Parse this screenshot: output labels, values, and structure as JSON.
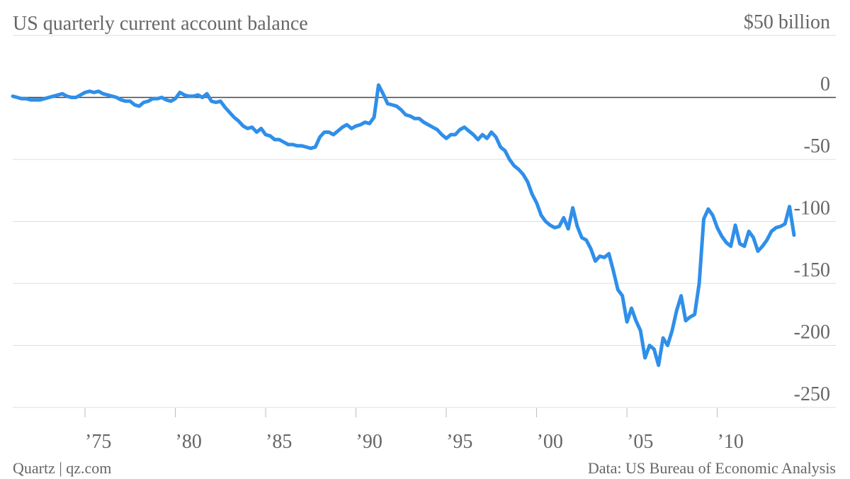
{
  "chart_data": {
    "type": "line",
    "title": "US quarterly current account balance",
    "footer": "Quartz | qz.com",
    "source": "Data: US Bureau of Economic Analysis",
    "x": [
      1971,
      1971.25,
      1971.5,
      1971.75,
      1972,
      1972.25,
      1972.5,
      1972.75,
      1973,
      1973.25,
      1973.5,
      1973.75,
      1974,
      1974.25,
      1974.5,
      1974.75,
      1975,
      1975.25,
      1975.5,
      1975.75,
      1976,
      1976.25,
      1976.5,
      1976.75,
      1977,
      1977.25,
      1977.5,
      1977.75,
      1978,
      1978.25,
      1978.5,
      1978.75,
      1979,
      1979.25,
      1979.5,
      1979.75,
      1980,
      1980.25,
      1980.5,
      1980.75,
      1981,
      1981.25,
      1981.5,
      1981.75,
      1982,
      1982.25,
      1982.5,
      1982.75,
      1983,
      1983.25,
      1983.5,
      1983.75,
      1984,
      1984.25,
      1984.5,
      1984.75,
      1985,
      1985.25,
      1985.5,
      1985.75,
      1986,
      1986.25,
      1986.5,
      1986.75,
      1987,
      1987.25,
      1987.5,
      1987.75,
      1988,
      1988.25,
      1988.5,
      1988.75,
      1989,
      1989.25,
      1989.5,
      1989.75,
      1990,
      1990.25,
      1990.5,
      1990.75,
      1991,
      1991.25,
      1991.5,
      1991.75,
      1992,
      1992.25,
      1992.5,
      1992.75,
      1993,
      1993.25,
      1993.5,
      1993.75,
      1994,
      1994.25,
      1994.5,
      1994.75,
      1995,
      1995.25,
      1995.5,
      1995.75,
      1996,
      1996.25,
      1996.5,
      1996.75,
      1997,
      1997.25,
      1997.5,
      1997.75,
      1998,
      1998.25,
      1998.5,
      1998.75,
      1999,
      1999.25,
      1999.5,
      1999.75,
      2000,
      2000.25,
      2000.5,
      2000.75,
      2001,
      2001.25,
      2001.5,
      2001.75,
      2002,
      2002.25,
      2002.5,
      2002.75,
      2003,
      2003.25,
      2003.5,
      2003.75,
      2004,
      2004.25,
      2004.5,
      2004.75,
      2005,
      2005.25,
      2005.5,
      2005.75,
      2006,
      2006.25,
      2006.5,
      2006.75,
      2007,
      2007.25,
      2007.5,
      2007.75,
      2008,
      2008.25,
      2008.5,
      2008.75,
      2009,
      2009.25,
      2009.5,
      2009.75,
      2010,
      2010.25,
      2010.5,
      2010.75,
      2011,
      2011.25,
      2011.5,
      2011.75,
      2012,
      2012.25,
      2012.5,
      2012.75,
      2013,
      2013.25,
      2013.5,
      2013.75,
      2014,
      2014.25
    ],
    "series": [
      {
        "name": "Current account balance",
        "color": "#2f8fe9",
        "values": [
          1,
          0,
          -1,
          -1,
          -2,
          -2,
          -2,
          -1,
          0,
          1,
          2,
          3,
          1,
          0,
          0,
          2,
          4,
          5,
          4,
          5,
          3,
          2,
          1,
          0,
          -2,
          -3,
          -3,
          -6,
          -7,
          -4,
          -3,
          -1,
          -1,
          0,
          -2,
          -3,
          -1,
          4,
          2,
          1,
          1,
          2,
          0,
          3,
          -3,
          -4,
          -3,
          -8,
          -12,
          -16,
          -19,
          -23,
          -25,
          -24,
          -28,
          -25,
          -30,
          -31,
          -34,
          -34,
          -36,
          -38,
          -38,
          -39,
          -39,
          -40,
          -41,
          -40,
          -32,
          -28,
          -28,
          -30,
          -27,
          -24,
          -22,
          -25,
          -23,
          -22,
          -20,
          -21,
          -16,
          10,
          3,
          -5,
          -6,
          -7,
          -10,
          -14,
          -15,
          -17,
          -17,
          -20,
          -22,
          -24,
          -26,
          -30,
          -33,
          -30,
          -30,
          -26,
          -24,
          -27,
          -30,
          -34,
          -30,
          -33,
          -28,
          -32,
          -40,
          -43,
          -50,
          -55,
          -58,
          -62,
          -68,
          -78,
          -85,
          -95,
          -100,
          -103,
          -105,
          -104,
          -97,
          -106,
          -89,
          -104,
          -113,
          -115,
          -122,
          -132,
          -128,
          -129,
          -126,
          -140,
          -155,
          -160,
          -181,
          -170,
          -180,
          -188,
          -210,
          -200,
          -203,
          -216,
          -194,
          -200,
          -188,
          -172,
          -160,
          -180,
          -177,
          -175,
          -150,
          -98,
          -90,
          -95,
          -105,
          -112,
          -117,
          -120,
          -103,
          -118,
          -120,
          -108,
          -113,
          -124,
          -120,
          -115,
          -108,
          -105,
          -104,
          -102,
          -88,
          -111
        ]
      }
    ],
    "xlim": [
      1971,
      2014.25
    ],
    "xticks": [
      {
        "value": 1975,
        "label": "’75"
      },
      {
        "value": 1980,
        "label": "’80"
      },
      {
        "value": 1985,
        "label": "’85"
      },
      {
        "value": 1990,
        "label": "’90"
      },
      {
        "value": 1995,
        "label": "’95"
      },
      {
        "value": 2000,
        "label": "’00"
      },
      {
        "value": 2005,
        "label": "’05"
      },
      {
        "value": 2010,
        "label": "’10"
      }
    ],
    "ylim": [
      -250,
      50
    ],
    "yticks": [
      {
        "value": 50,
        "label": "$50 billion"
      },
      0,
      -50,
      -100,
      -150,
      -200,
      -250
    ],
    "grid": true
  }
}
